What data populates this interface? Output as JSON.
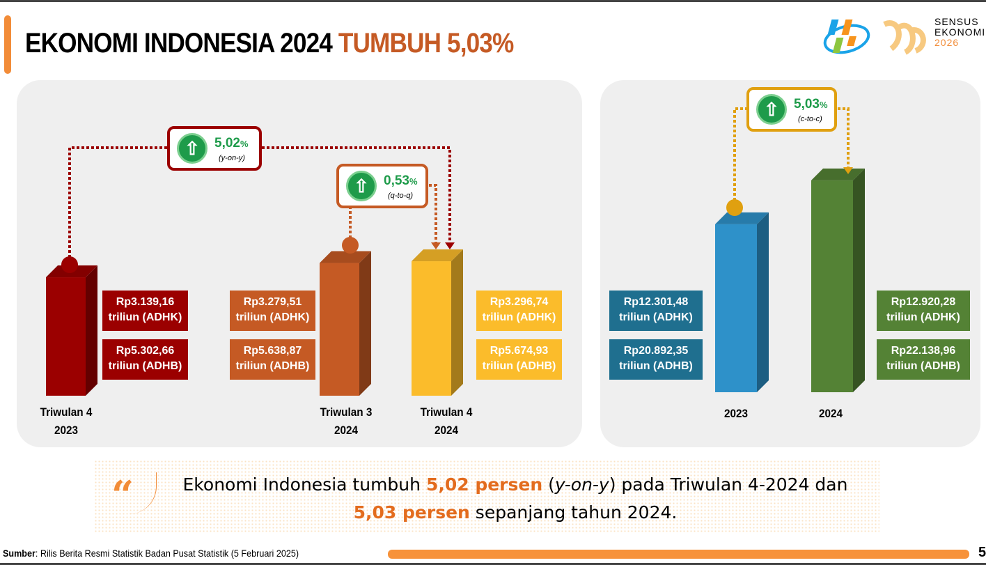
{
  "header": {
    "title_main": "EKONOMI INDONESIA 2024",
    "title_highlight": "TUMBUH 5,03%"
  },
  "logo": {
    "text": [
      "SENSUS",
      "EKONOMI",
      "2026"
    ]
  },
  "chart_data": [
    {
      "type": "bar",
      "categories": [
        "Triwulan 4 2023",
        "Triwulan 3 2024",
        "Triwulan 4 2024"
      ],
      "series": [
        {
          "name": "ADHK",
          "values": [
            3139.16,
            3279.51,
            3296.74
          ]
        },
        {
          "name": "ADHB",
          "values": [
            5302.66,
            5638.87,
            5674.93
          ]
        }
      ],
      "colors": [
        "#9b0000",
        "#c55a24",
        "#fbbc2b"
      ],
      "labels": [
        {
          "cat1": "Triwulan 4",
          "cat2": "2023",
          "adhk": "Rp3.139,16\ntriliun (ADHK)",
          "adhk_a": "Rp3.139,16",
          "adhk_b": "triliun (ADHK)",
          "adhb_a": "Rp5.302,66",
          "adhb_b": "triliun (ADHB)"
        },
        {
          "cat1": "Triwulan 3",
          "cat2": "2024",
          "adhk_a": "Rp3.279,51",
          "adhk_b": "triliun (ADHK)",
          "adhb_a": "Rp5.638,87",
          "adhb_b": "triliun (ADHB)"
        },
        {
          "cat1": "Triwulan 4",
          "cat2": "2024",
          "adhk_a": "Rp3.296,74",
          "adhk_b": "triliun (ADHK)",
          "adhb_a": "Rp5.674,93",
          "adhb_b": "triliun (ADHB)"
        }
      ],
      "annotations": [
        {
          "value": "5,02",
          "unit": "%",
          "label": "(y-on-y)"
        },
        {
          "value": "0,53",
          "unit": "%",
          "label": "(q-to-q)"
        }
      ]
    },
    {
      "type": "bar",
      "categories": [
        "2023",
        "2024"
      ],
      "series": [
        {
          "name": "ADHK",
          "values": [
            12301.48,
            12920.28
          ]
        },
        {
          "name": "ADHB",
          "values": [
            20892.35,
            22138.96
          ]
        }
      ],
      "colors": [
        "#2e91c9",
        "#548235"
      ],
      "labels": [
        {
          "adhk_a": "Rp12.301,48",
          "adhk_b": "triliun (ADHK)",
          "adhb_a": "Rp20.892,35",
          "adhb_b": "triliun (ADHB)"
        },
        {
          "adhk_a": "Rp12.920,28",
          "adhk_b": "triliun (ADHK)",
          "adhb_a": "Rp22.138,96",
          "adhb_b": "triliun (ADHB)"
        }
      ],
      "annotations": [
        {
          "value": "5,03",
          "unit": "%",
          "label": "(c-to-c)"
        }
      ]
    }
  ],
  "quote": {
    "t1": "Ekonomi Indonesia tumbuh ",
    "h1": "5,02 persen",
    "t2": " (",
    "i1": "y-on-y",
    "t3": ") pada Triwulan 4-2024 dan",
    "h2": "5,03 persen",
    "t4": " sepanjang tahun 2024."
  },
  "footer": {
    "source_label": "Sumber",
    "source_text": ": Rilis Berita Resmi Statistik Badan Pusat Statistik (5 Februari 2025)",
    "page": "5"
  }
}
